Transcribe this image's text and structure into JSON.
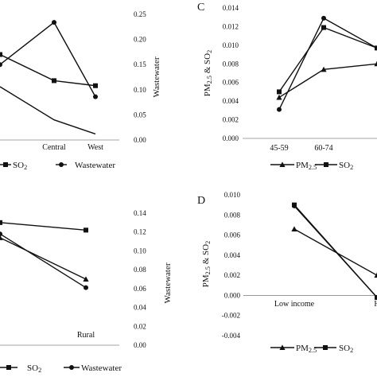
{
  "chart_data": [
    {
      "id": "B",
      "type": "line",
      "categories": [
        "",
        "Central",
        "West"
      ],
      "y2label": "Wastewater",
      "y2lim": [
        0,
        0.25
      ],
      "y2ticks": [
        "0.00",
        "0.05",
        "0.10",
        "0.15",
        "0.20",
        "0.25"
      ],
      "series": [
        {
          "name": "",
          "marker": "none",
          "axis": "right",
          "values": [
            0.106,
            0.04,
            0.012
          ]
        },
        {
          "name": "SO2",
          "marker": "square",
          "axis": "right",
          "values": [
            0.17,
            0.118,
            0.108
          ]
        },
        {
          "name": "Wastewater",
          "marker": "circle",
          "axis": "right",
          "values": [
            0.15,
            0.234,
            0.086
          ]
        }
      ],
      "legend": [
        "SO2",
        "Wastewater"
      ],
      "legend_position": "bottom"
    },
    {
      "id": "C",
      "type": "line",
      "panel_letter": "C",
      "categories": [
        "45-59",
        "60-74",
        ""
      ],
      "ylabel": "PM2.5 & SO2",
      "ylim": [
        0,
        0.014
      ],
      "yticks": [
        "0.000",
        "0.002",
        "0.004",
        "0.006",
        "0.008",
        "0.010",
        "0.012",
        "0.014"
      ],
      "series": [
        {
          "name": "PM2.5",
          "marker": "triangle",
          "values": [
            0.0044,
            0.0074,
            0.008
          ]
        },
        {
          "name": "SO2",
          "marker": "square",
          "values": [
            0.005,
            0.0119,
            0.0097
          ]
        },
        {
          "name": "",
          "marker": "circle",
          "values": [
            0.0031,
            0.0129,
            0.0097
          ]
        }
      ],
      "legend": [
        "PM2.5",
        "SO2"
      ],
      "legend_position": "bottom"
    },
    {
      "id": "E",
      "type": "line",
      "categories": [
        "",
        "Rural"
      ],
      "y2label": "Wastewater",
      "y2lim": [
        0,
        0.14
      ],
      "y2ticks": [
        "0.00",
        "0.02",
        "0.04",
        "0.06",
        "0.08",
        "0.10",
        "0.12",
        "0.14"
      ],
      "series": [
        {
          "name": "",
          "marker": "triangle",
          "values": [
            0.114,
            0.07
          ]
        },
        {
          "name": "SO2",
          "marker": "square",
          "values": [
            0.13,
            0.122
          ]
        },
        {
          "name": "Wastewater",
          "marker": "circle",
          "values": [
            0.118,
            0.061
          ]
        }
      ],
      "legend": [
        "SO2",
        "Wastewater"
      ],
      "legend_position": "bottom"
    },
    {
      "id": "D",
      "type": "line",
      "panel_letter": "D",
      "categories": [
        "Low income",
        "H"
      ],
      "ylabel": "PM2.5 & SO2",
      "ylim": [
        -0.004,
        0.01
      ],
      "yticks": [
        "-0.004",
        "-0.002",
        "0.000",
        "0.002",
        "0.004",
        "0.006",
        "0.008",
        "0.010"
      ],
      "series": [
        {
          "name": "PM2.5",
          "marker": "triangle",
          "values": [
            0.0066,
            0.002
          ]
        },
        {
          "name": "SO2",
          "marker": "square",
          "values": [
            0.009,
            -0.0002
          ]
        },
        {
          "name": "",
          "marker": "circle",
          "values": [
            0.0089,
            -0.0002
          ]
        }
      ],
      "legend": [
        "PM2.5",
        "SO2"
      ],
      "legend_position": "bottom"
    }
  ]
}
